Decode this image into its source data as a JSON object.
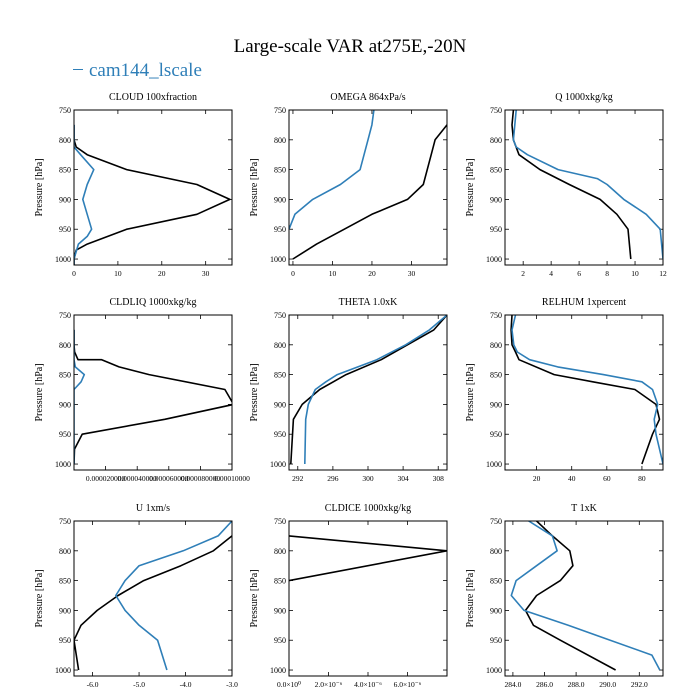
{
  "title": "Large-scale VAR at275E,-20N",
  "legend": {
    "label": "cam144_lscale",
    "color": "#2f7fb8"
  },
  "colors": {
    "obs": "#000000",
    "model": "#2f7fb8"
  },
  "ylabel": "Pressure [hPa]",
  "yticks": [
    "750",
    "800",
    "850",
    "900",
    "950",
    "1000"
  ],
  "chart_data": [
    {
      "type": "line",
      "title": "CLOUD  100xfraction",
      "xlim": [
        0,
        36
      ],
      "xticks": [
        {
          "v": 0,
          "label": "0"
        },
        {
          "v": 10,
          "label": "10"
        },
        {
          "v": 20,
          "label": "20"
        },
        {
          "v": 30,
          "label": "30"
        }
      ],
      "ylim": [
        750,
        1010
      ],
      "ylabel": "Pressure [hPa]",
      "series": [
        {
          "name": "obs",
          "x": [
            0,
            0,
            0.5,
            3,
            12,
            28,
            35.5,
            28,
            12,
            3,
            0.5,
            0,
            0
          ],
          "y": [
            775,
            800,
            812,
            825,
            850,
            875,
            900,
            925,
            950,
            975,
            985,
            1000,
            1010
          ]
        },
        {
          "name": "cam144_lscale",
          "x": [
            0,
            0,
            0,
            1.5,
            4.5,
            3,
            2,
            3,
            4,
            3,
            1,
            0,
            0
          ],
          "y": [
            775,
            800,
            812,
            825,
            850,
            875,
            900,
            925,
            950,
            962,
            975,
            1000,
            1010
          ]
        }
      ]
    },
    {
      "type": "line",
      "title": "OMEGA  864xPa/s",
      "xlim": [
        -1,
        39
      ],
      "xticks": [
        {
          "v": 0,
          "label": "0"
        },
        {
          "v": 10,
          "label": "10"
        },
        {
          "v": 20,
          "label": "20"
        },
        {
          "v": 30,
          "label": "30"
        }
      ],
      "ylim": [
        750,
        1010
      ],
      "ylabel": "Pressure [hPa]",
      "series": [
        {
          "name": "obs",
          "x": [
            39,
            36,
            35,
            33,
            29,
            20,
            13,
            6,
            0
          ],
          "y": [
            775,
            800,
            825,
            875,
            900,
            925,
            950,
            975,
            1000
          ]
        },
        {
          "name": "cam144_lscale",
          "x": [
            20.5,
            20,
            19,
            17,
            12,
            5,
            0.5,
            -1
          ],
          "y": [
            750,
            775,
            800,
            850,
            875,
            900,
            925,
            950
          ]
        }
      ]
    },
    {
      "type": "line",
      "title": "Q  1000xkg/kg",
      "xlim": [
        0.7,
        12
      ],
      "xticks": [
        {
          "v": 2,
          "label": "2"
        },
        {
          "v": 4,
          "label": "4"
        },
        {
          "v": 6,
          "label": "6"
        },
        {
          "v": 8,
          "label": "8"
        },
        {
          "v": 10,
          "label": "10"
        },
        {
          "v": 12,
          "label": "12"
        }
      ],
      "ylim": [
        750,
        1010
      ],
      "ylabel": "Pressure [hPa]",
      "series": [
        {
          "name": "obs",
          "x": [
            1.3,
            1.2,
            1.3,
            1.7,
            3.2,
            5.3,
            7.5,
            8.7,
            9.5,
            9.7
          ],
          "y": [
            750,
            775,
            800,
            825,
            850,
            875,
            900,
            925,
            950,
            1000
          ]
        },
        {
          "name": "cam144_lscale",
          "x": [
            1.5,
            1.4,
            1.3,
            1.5,
            2.3,
            4.5,
            7.3,
            8,
            9.2,
            10.8,
            11.8,
            12
          ],
          "y": [
            750,
            775,
            800,
            812,
            825,
            850,
            865,
            875,
            900,
            925,
            950,
            1000
          ]
        }
      ]
    },
    {
      "type": "line",
      "title": "CLDLIQ  1000xkg/kg",
      "xlim": [
        0,
        0.0001
      ],
      "xticks": [
        {
          "v": 2e-05,
          "label": "0.000020000"
        },
        {
          "v": 4e-05,
          "label": "0.000040000"
        },
        {
          "v": 6e-05,
          "label": "0.000060000"
        },
        {
          "v": 8e-05,
          "label": "0.000080000"
        },
        {
          "v": 0.0001,
          "label": "0.00010000"
        }
      ],
      "ylim": [
        750,
        1010
      ],
      "ylabel": "Pressure [hPa]",
      "series": [
        {
          "name": "obs",
          "x": [
            0,
            0,
            4e-07,
            2.5e-06,
            1.75e-05,
            2.85e-05,
            4.75e-05,
            9.55e-05,
            0.000101,
            5.75e-05,
            5.2e-06,
            3e-07,
            0
          ],
          "y": [
            775,
            800,
            812,
            825,
            825,
            837,
            850,
            875,
            900,
            925,
            950,
            975,
            1000
          ]
        },
        {
          "name": "cam144_lscale",
          "x": [
            0,
            0,
            8e-07,
            6.5e-06,
            4.5e-06,
            0,
            0
          ],
          "y": [
            775,
            825,
            837,
            850,
            862,
            875,
            1000
          ]
        }
      ]
    },
    {
      "type": "line",
      "title": "THETA  1.0xK",
      "xlim": [
        291,
        309
      ],
      "xticks": [
        {
          "v": 292,
          "label": "292"
        },
        {
          "v": 296,
          "label": "296"
        },
        {
          "v": 300,
          "label": "300"
        },
        {
          "v": 304,
          "label": "304"
        },
        {
          "v": 308,
          "label": "308"
        }
      ],
      "ylim": [
        750,
        1010
      ],
      "ylabel": "Pressure [hPa]",
      "series": [
        {
          "name": "obs",
          "x": [
            309,
            307.5,
            304.5,
            301.5,
            297.5,
            294.5,
            292.5,
            291.5,
            291.2
          ],
          "y": [
            750,
            775,
            800,
            825,
            850,
            875,
            900,
            925,
            1000
          ]
        },
        {
          "name": "cam144_lscale",
          "x": [
            309,
            307,
            304.3,
            301,
            296.5,
            295.2,
            294,
            293.2,
            292.9,
            292.8
          ],
          "y": [
            750,
            775,
            800,
            825,
            850,
            862,
            875,
            900,
            925,
            1000
          ]
        }
      ]
    },
    {
      "type": "line",
      "title": "RELHUM  1xpercent",
      "xlim": [
        2,
        92
      ],
      "xticks": [
        {
          "v": 20,
          "label": "20"
        },
        {
          "v": 40,
          "label": "40"
        },
        {
          "v": 60,
          "label": "60"
        },
        {
          "v": 80,
          "label": "80"
        }
      ],
      "ylim": [
        750,
        1010
      ],
      "ylabel": "Pressure [hPa]",
      "series": [
        {
          "name": "obs",
          "x": [
            6,
            5.5,
            6,
            8,
            10,
            30,
            52,
            76,
            88,
            90,
            86,
            80
          ],
          "y": [
            750,
            775,
            800,
            812,
            825,
            850,
            862,
            875,
            900,
            925,
            950,
            1000
          ]
        },
        {
          "name": "cam144_lscale",
          "x": [
            8,
            6,
            7,
            9,
            16,
            32,
            58,
            80,
            86,
            89,
            87,
            88,
            92
          ],
          "y": [
            750,
            775,
            800,
            812,
            825,
            837,
            850,
            862,
            875,
            900,
            925,
            950,
            1000
          ]
        }
      ]
    },
    {
      "type": "line",
      "title": "U  1xm/s",
      "xlim": [
        -6.4,
        -3.0
      ],
      "xticks": [
        {
          "v": -6.0,
          "label": "-6.0"
        },
        {
          "v": -5.0,
          "label": "-5.0"
        },
        {
          "v": -4.0,
          "label": "-4.0"
        },
        {
          "v": -3.0,
          "label": "-3.0"
        }
      ],
      "ylim": [
        750,
        1010
      ],
      "ylabel": "Pressure [hPa]",
      "series": [
        {
          "name": "obs",
          "x": [
            -3.0,
            -3.4,
            -4.1,
            -4.9,
            -5.45,
            -5.9,
            -6.25,
            -6.4,
            -6.3
          ],
          "y": [
            775,
            800,
            825,
            850,
            875,
            900,
            925,
            950,
            1000
          ]
        },
        {
          "name": "cam144_lscale",
          "x": [
            -3.0,
            -3.3,
            -4.05,
            -5.0,
            -5.3,
            -5.5,
            -5.3,
            -5.0,
            -4.6,
            -4.4
          ],
          "y": [
            750,
            775,
            800,
            825,
            850,
            875,
            900,
            925,
            950,
            1000
          ]
        }
      ]
    },
    {
      "type": "line",
      "title": "CLDICE  1000xkg/kg",
      "xlim": [
        0,
        8e-06
      ],
      "xticks": [
        {
          "v": 0,
          "label": "0.0×10⁰"
        },
        {
          "v": 2e-06,
          "label": "2.0×10⁻⁶"
        },
        {
          "v": 4e-06,
          "label": "4.0×10⁻⁶"
        },
        {
          "v": 6e-06,
          "label": "6.0×10⁻⁶"
        }
      ],
      "ylim": [
        750,
        1010
      ],
      "ylabel": "Pressure [hPa]",
      "series": [
        {
          "name": "obs",
          "x": [
            0,
            8e-06,
            0
          ],
          "y": [
            775,
            800,
            850
          ]
        }
      ]
    },
    {
      "type": "line",
      "title": "T  1xK",
      "xlim": [
        283.5,
        293.5
      ],
      "xticks": [
        {
          "v": 284,
          "label": "284.0"
        },
        {
          "v": 286,
          "label": "286.0"
        },
        {
          "v": 288,
          "label": "288.0"
        },
        {
          "v": 290,
          "label": "290.0"
        },
        {
          "v": 292,
          "label": "292.0"
        }
      ],
      "ylim": [
        750,
        1010
      ],
      "ylabel": "Pressure [hPa]",
      "series": [
        {
          "name": "obs",
          "x": [
            285.5,
            286.5,
            287.6,
            287.8,
            287.0,
            285.5,
            284.8,
            285.3,
            287.0,
            290.5
          ],
          "y": [
            750,
            775,
            800,
            825,
            850,
            875,
            900,
            925,
            950,
            1000
          ]
        },
        {
          "name": "cam144_lscale",
          "x": [
            285,
            286.5,
            286.8,
            285.5,
            284.2,
            283.9,
            284.7,
            287.5,
            292.8,
            293.3
          ],
          "y": [
            750,
            775,
            800,
            825,
            850,
            875,
            900,
            925,
            975,
            1000
          ]
        }
      ]
    }
  ]
}
